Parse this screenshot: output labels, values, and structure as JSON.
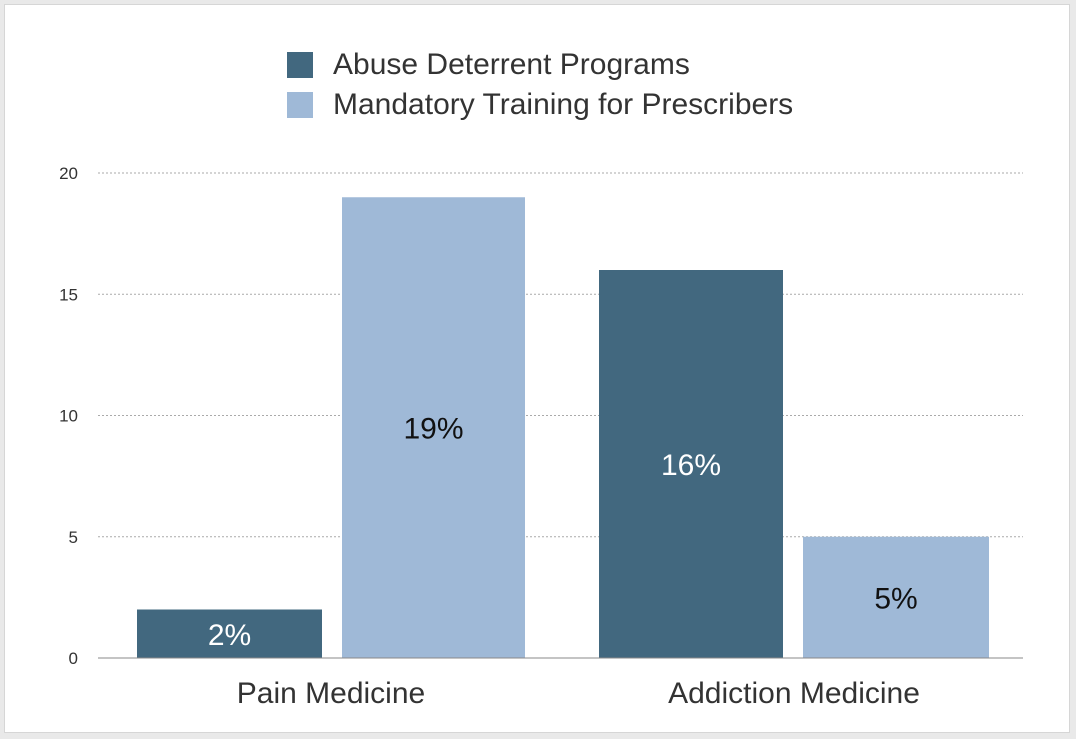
{
  "chart_data": {
    "type": "bar",
    "title": "",
    "xlabel": "",
    "ylabel": "",
    "categories": [
      "Pain Medicine",
      "Addiction Medicine"
    ],
    "series": [
      {
        "name": "Abuse Deterrent Programs",
        "values": [
          2,
          16
        ],
        "labels": [
          "2%",
          "16%"
        ],
        "color": "#42687f",
        "label_color": "#ffffff"
      },
      {
        "name": "Mandatory Training for Prescribers",
        "values": [
          19,
          5
        ],
        "labels": [
          "19%",
          "5%"
        ],
        "color": "#9fb9d7",
        "label_color": "#111111"
      }
    ],
    "ylim": [
      0,
      20
    ],
    "yticks": [
      0,
      5,
      10,
      15,
      20
    ],
    "grid": true,
    "legend_position": "top"
  }
}
